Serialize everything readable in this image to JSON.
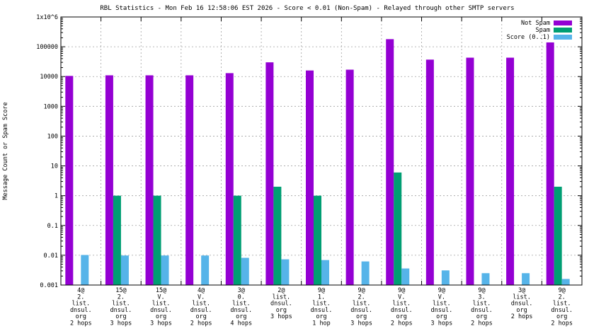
{
  "chart_data": {
    "type": "bar",
    "title": "RBL Statistics - Mon Feb 16 12:58:06 EST 2026 - Score < 0.01 (Non-Spam) - Relayed through other SMTP servers",
    "ylabel": "Message Count or Spam Score",
    "xlabel": "",
    "yscale": "log",
    "ylim": [
      0.001,
      1000000
    ],
    "ytick_labels": [
      "0.001",
      "0.01",
      "0.1",
      "1",
      "10",
      "100",
      "1000",
      "10000",
      "100000",
      "1x10^6"
    ],
    "grid": true,
    "legend_position": "top-right",
    "categories": [
      [
        "4@",
        "2.",
        "list.",
        "dnsul.",
        "org",
        "2 hops"
      ],
      [
        "15@",
        "2.",
        "list.",
        "dnsul.",
        "org",
        "3 hops"
      ],
      [
        "15@",
        "V.",
        "list.",
        "dnsul.",
        "org",
        "3 hops"
      ],
      [
        "4@",
        "V.",
        "list.",
        "dnsul.",
        "org",
        "2 hops"
      ],
      [
        "3@",
        "0.",
        "list.",
        "dnsul.",
        "org",
        "4 hops"
      ],
      [
        "2@",
        "list.",
        "dnsul.",
        "org",
        "3 hops"
      ],
      [
        "9@",
        "1.",
        "list.",
        "dnsul.",
        "org",
        "1 hop"
      ],
      [
        "9@",
        "2.",
        "list.",
        "dnsul.",
        "org",
        "3 hops"
      ],
      [
        "9@",
        "V.",
        "list.",
        "dnsul.",
        "org",
        "2 hops"
      ],
      [
        "9@",
        "V.",
        "list.",
        "dnsul.",
        "org",
        "3 hops"
      ],
      [
        "9@",
        "3.",
        "list.",
        "dnsul.",
        "org",
        "2 hops"
      ],
      [
        "3@",
        "list.",
        "dnsul.",
        "org",
        "2 hops"
      ],
      [
        "9@",
        "2.",
        "list.",
        "dnsul.",
        "org",
        "2 hops"
      ]
    ],
    "series": [
      {
        "name": "Not Spam",
        "color": "#9400d3",
        "values": [
          10500,
          11000,
          11000,
          11000,
          13000,
          30000,
          16000,
          17000,
          180000,
          37000,
          43000,
          43000,
          140000
        ]
      },
      {
        "name": "Spam",
        "color": "#009e73",
        "values": [
          null,
          1,
          1,
          null,
          1,
          2,
          1,
          null,
          6,
          null,
          null,
          null,
          2
        ]
      },
      {
        "name": "Score (0..1)",
        "color": "#56b4e9",
        "values": [
          0.0102,
          0.0098,
          0.0098,
          0.0098,
          0.0082,
          0.0073,
          0.0069,
          0.0062,
          0.0036,
          0.0031,
          0.0025,
          0.0025,
          0.0016
        ]
      }
    ]
  }
}
